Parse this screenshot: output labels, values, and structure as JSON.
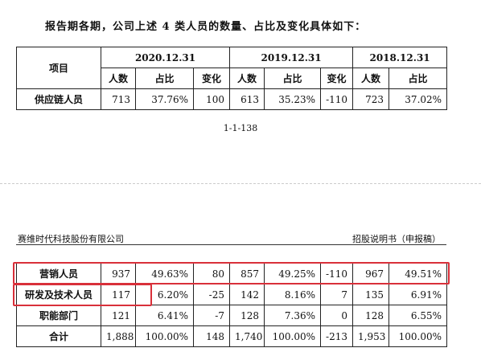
{
  "intro": "报告期各期，公司上述 4 类人员的数量、占比及变化具体如下：",
  "table1": {
    "item_header": "项目",
    "periods": [
      "2020.12.31",
      "2019.12.31",
      "2018.12.31"
    ],
    "subheaders": [
      "人数",
      "占比",
      "变化",
      "人数",
      "占比",
      "变化",
      "人数",
      "占比"
    ],
    "rows": [
      [
        "供应链人员",
        "713",
        "37.76%",
        "100",
        "613",
        "35.23%",
        "-110",
        "723",
        "37.02%"
      ]
    ]
  },
  "page_number": "1-1-138",
  "header": {
    "company": "赛维时代科技股份有限公司",
    "document": "招股说明书（申报稿）"
  },
  "table2": {
    "rows": [
      [
        "营销人员",
        "937",
        "49.63%",
        "80",
        "857",
        "49.25%",
        "-110",
        "967",
        "49.51%"
      ],
      [
        "研发及技术人员",
        "117",
        "6.20%",
        "-25",
        "142",
        "8.16%",
        "7",
        "135",
        "6.91%"
      ],
      [
        "职能部门",
        "121",
        "6.41%",
        "-7",
        "128",
        "7.36%",
        "0",
        "128",
        "6.55%"
      ],
      [
        "合计",
        "1,888",
        "100.00%",
        "148",
        "1,740",
        "100.00%",
        "-213",
        "1,953",
        "100.00%"
      ]
    ]
  }
}
